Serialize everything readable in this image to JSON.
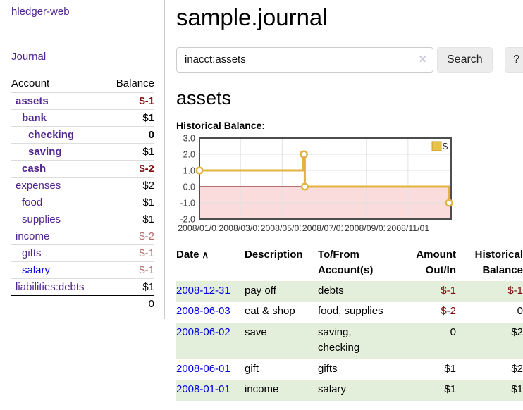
{
  "app": {
    "title": "hledger-web"
  },
  "sidebar": {
    "journal_link": "Journal",
    "table_headers": {
      "account": "Account",
      "balance": "Balance"
    },
    "accounts": [
      {
        "name": "assets",
        "balance": "$-1"
      },
      {
        "name": "bank",
        "balance": "$1"
      },
      {
        "name": "checking",
        "balance": "0"
      },
      {
        "name": "saving",
        "balance": "$1"
      },
      {
        "name": "cash",
        "balance": "$-2"
      },
      {
        "name": "expenses",
        "balance": "$2"
      },
      {
        "name": "food",
        "balance": "$1"
      },
      {
        "name": "supplies",
        "balance": "$1"
      },
      {
        "name": "income",
        "balance": "$-2"
      },
      {
        "name": "gifts",
        "balance": "$-1"
      },
      {
        "name": "salary",
        "balance": "$-1"
      },
      {
        "name": "liabilities:debts",
        "balance": "$1"
      }
    ],
    "total": "0"
  },
  "main": {
    "title": "sample.journal",
    "search": {
      "value": "inacct:assets",
      "clear_icon": "✕",
      "button": "Search",
      "help_button": "?"
    },
    "account_heading": "assets",
    "chart_heading": "Historical Balance:"
  },
  "chart_data": {
    "type": "line",
    "style": "step",
    "title": "Historical Balance:",
    "legend": {
      "label": "$",
      "position": "top-right"
    },
    "ylim": [
      -2,
      3
    ],
    "x_domain_days": [
      0,
      368
    ],
    "y_ticks": [
      {
        "v": 3,
        "label": "3.0"
      },
      {
        "v": 2,
        "label": "2.0"
      },
      {
        "v": 1,
        "label": "1.0"
      },
      {
        "v": 0,
        "label": "0.0"
      },
      {
        "v": -1,
        "label": "-1.0"
      },
      {
        "v": -2,
        "label": "-2.0"
      }
    ],
    "x_ticks": [
      {
        "day": 0,
        "label": "2008/01/01"
      },
      {
        "day": 60,
        "label": "2008/03/01"
      },
      {
        "day": 121,
        "label": "2008/05/01"
      },
      {
        "day": 182,
        "label": "2008/07/01"
      },
      {
        "day": 244,
        "label": "2008/09/01"
      },
      {
        "day": 305,
        "label": "2008/11/01"
      }
    ],
    "grid": true,
    "series": [
      {
        "name": "$",
        "points": [
          {
            "date": "2008-01-01",
            "day": 0,
            "value": 1
          },
          {
            "date": "2008-06-01",
            "day": 152,
            "value": 2
          },
          {
            "date": "2008-06-02",
            "day": 153,
            "value": 2
          },
          {
            "date": "2008-06-03",
            "day": 154,
            "value": 0
          },
          {
            "date": "2008-12-31",
            "day": 365,
            "value": -1
          }
        ]
      }
    ],
    "colors": {
      "line": "#e0b43e",
      "marker_fill": "#ffffff",
      "legend_fill": "#e9c24c",
      "legend_border": "#bf9c30",
      "zero_line": "#8b1a1a",
      "negative_region": "#fbdcdc",
      "grid": "#e2e2e2",
      "border": "#4d4d4d",
      "tick_text": "#3c3c3c"
    }
  },
  "transactions": {
    "headers": [
      "Date",
      "Description",
      "To/From Account(s)",
      "Amount Out/In",
      "Historical Balance"
    ],
    "sort_icon": "∧",
    "rows": [
      {
        "date": "2008-12-31",
        "description": "pay off",
        "accounts": "debts",
        "amount": "$-1",
        "balance": "$-1"
      },
      {
        "date": "2008-06-03",
        "description": "eat & shop",
        "accounts": "food, supplies",
        "amount": "$-2",
        "balance": "0"
      },
      {
        "date": "2008-06-02",
        "description": "save",
        "accounts": "saving, checking",
        "amount": "0",
        "balance": "$2"
      },
      {
        "date": "2008-06-01",
        "description": "gift",
        "accounts": "gifts",
        "amount": "$1",
        "balance": "$2"
      },
      {
        "date": "2008-01-01",
        "description": "income",
        "accounts": "salary",
        "amount": "$1",
        "balance": "$1"
      }
    ]
  }
}
